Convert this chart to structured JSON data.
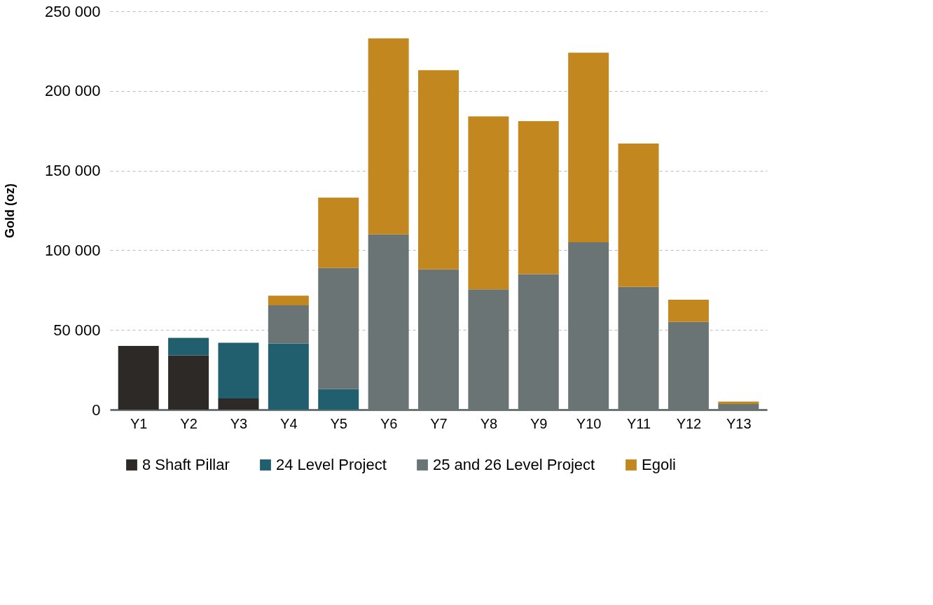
{
  "chart_data": {
    "type": "bar",
    "stacked": true,
    "ylabel": "Gold (oz)",
    "categories": [
      "Y1",
      "Y2",
      "Y3",
      "Y4",
      "Y5",
      "Y6",
      "Y7",
      "Y8",
      "Y9",
      "Y10",
      "Y11",
      "Y12",
      "Y13"
    ],
    "series": [
      {
        "name": "8 Shaft Pillar",
        "color": "#2d2926",
        "values": [
          40000,
          34000,
          7000,
          null,
          null,
          null,
          null,
          null,
          null,
          null,
          null,
          null,
          null
        ]
      },
      {
        "name": "24 Level Project",
        "color": "#215e6e",
        "values": [
          null,
          11000,
          35000,
          41500,
          13000,
          null,
          null,
          null,
          null,
          null,
          null,
          null,
          null
        ]
      },
      {
        "name": "25 and 26 Level Project",
        "color": "#6b7475",
        "values": [
          null,
          null,
          null,
          24000,
          76000,
          110000,
          88000,
          75500,
          85000,
          105000,
          77000,
          55000,
          3500
        ]
      },
      {
        "name": "Egoli",
        "color": "#c2881f",
        "values": [
          null,
          null,
          null,
          6000,
          44000,
          123000,
          125000,
          108500,
          96000,
          119000,
          90000,
          14000,
          1500
        ]
      }
    ],
    "ylim": [
      0,
      250000
    ],
    "yticks": [
      {
        "value": 0,
        "label": "0"
      },
      {
        "value": 50000,
        "label": "50 000"
      },
      {
        "value": 100000,
        "label": "100 000"
      },
      {
        "value": 150000,
        "label": "150 000"
      },
      {
        "value": 200000,
        "label": "200 000"
      },
      {
        "value": 250000,
        "label": "250 000"
      }
    ],
    "grid": "y",
    "legend": "bottom"
  }
}
